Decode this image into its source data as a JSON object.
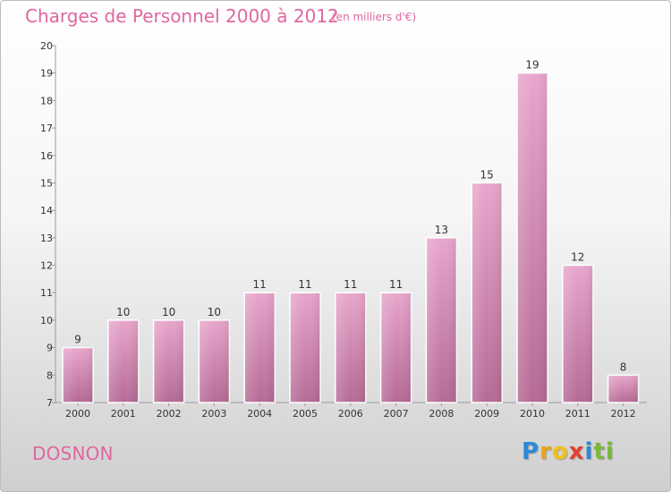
{
  "header": {
    "title": "Charges de Personnel 2000 à 2012",
    "subtitle": "(en milliers d'€)"
  },
  "footer": {
    "commune": "DOSNON",
    "logo": [
      "P",
      "r",
      "o",
      "x",
      "i",
      "t",
      "i"
    ]
  },
  "colors": {
    "bar_top": "#e8a6cc",
    "bar_bottom": "#b56a95",
    "text": "#e0669f"
  },
  "chart_data": {
    "type": "bar",
    "title": "Charges de Personnel 2000 à 2012",
    "subtitle": "(en milliers d'€)",
    "categories": [
      "2000",
      "2001",
      "2002",
      "2003",
      "2004",
      "2005",
      "2006",
      "2007",
      "2008",
      "2009",
      "2010",
      "2011",
      "2012"
    ],
    "values": [
      9,
      10,
      10,
      10,
      11,
      11,
      11,
      11,
      13,
      15,
      19,
      12,
      8
    ],
    "ylim": [
      7,
      20
    ],
    "yticks": [
      7,
      8,
      9,
      10,
      11,
      12,
      13,
      14,
      15,
      16,
      17,
      18,
      19,
      20
    ],
    "grid": false,
    "legend": "none"
  }
}
